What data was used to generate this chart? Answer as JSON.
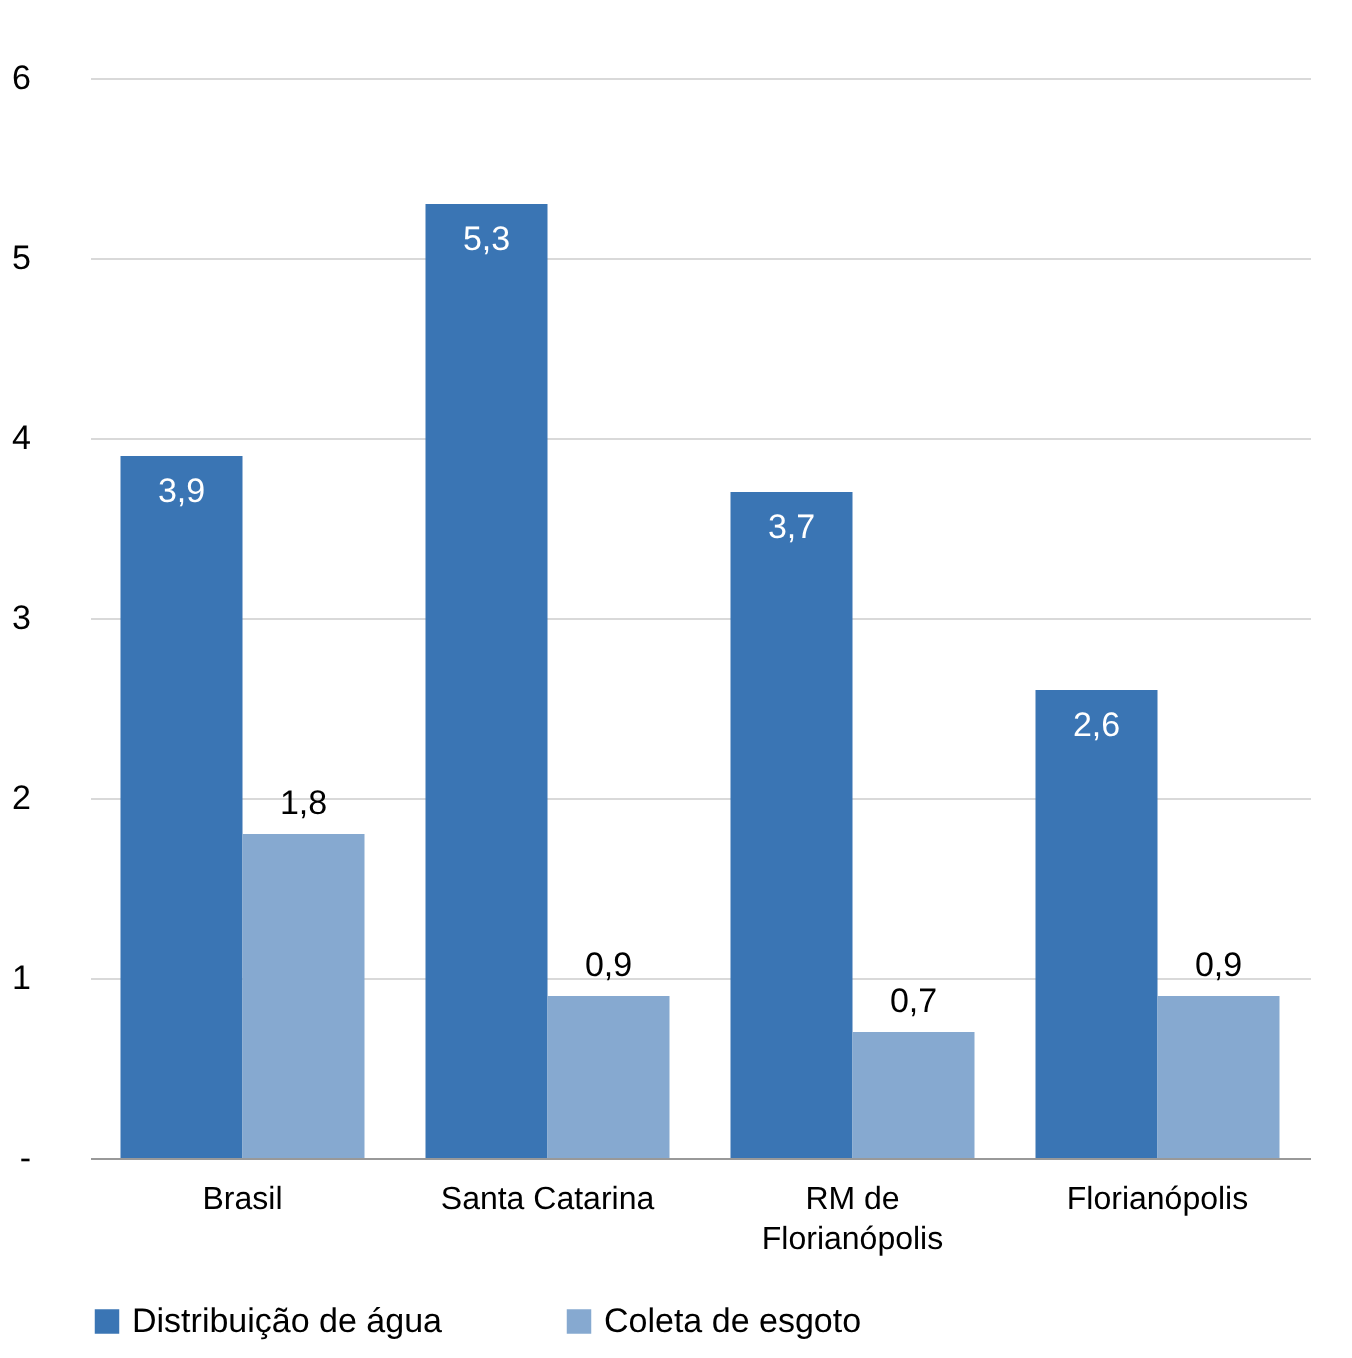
{
  "chart_data": {
    "type": "bar",
    "categories": [
      "Brasil",
      "Santa Catarina",
      "RM de Florianópolis",
      "Florianópolis"
    ],
    "series": [
      {
        "name": "Distribuição de água",
        "color": "#3a75b4",
        "values": [
          3.9,
          5.3,
          3.7,
          2.6
        ],
        "value_labels": [
          "3,9",
          "5,3",
          "3,7",
          "2,6"
        ]
      },
      {
        "name": "Coleta de esgoto",
        "color": "#86a9d0",
        "values": [
          1.8,
          0.9,
          0.7,
          0.9
        ],
        "value_labels": [
          "1,8",
          "0,9",
          "0,7",
          "0,9"
        ]
      }
    ],
    "ylim": [
      0,
      6
    ],
    "yticks": [
      {
        "value": 0,
        "label": "-"
      },
      1,
      2,
      3,
      4,
      5,
      6
    ],
    "grid": "y",
    "legend": "bottom"
  }
}
